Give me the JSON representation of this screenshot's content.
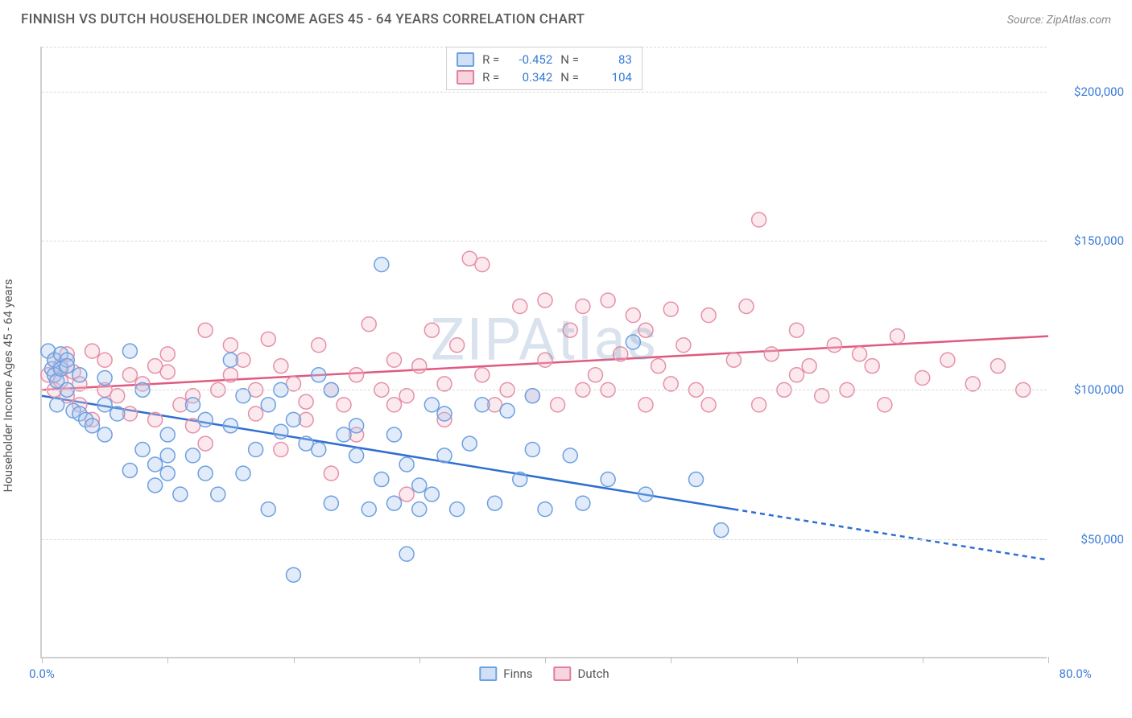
{
  "header": {
    "title": "FINNISH VS DUTCH HOUSEHOLDER INCOME AGES 45 - 64 YEARS CORRELATION CHART",
    "source_prefix": "Source: ",
    "source": "ZipAtlas.com"
  },
  "watermark": "ZIPAtlas",
  "chart": {
    "type": "scatter",
    "ylabel": "Householder Income Ages 45 - 64 years",
    "xlim": [
      0,
      80
    ],
    "ylim": [
      10000,
      215000
    ],
    "x_ticks_pct": [
      0,
      10,
      20,
      30,
      40,
      50,
      60,
      70,
      80
    ],
    "x_tick_labels_shown": {
      "0": "0.0%",
      "80": "80.0%"
    },
    "y_gridlines": [
      50000,
      100000,
      150000,
      200000
    ],
    "y_tick_labels": {
      "50000": "$50,000",
      "100000": "$100,000",
      "150000": "$150,000",
      "200000": "$200,000"
    },
    "background_color": "#ffffff",
    "grid_color": "#d9d9d9",
    "axis_color": "#d0d0d0",
    "tick_label_color": "#3a7bd5",
    "marker_radius": 9,
    "marker_stroke_width": 1.5,
    "marker_fill_opacity": 0.35,
    "trendline_width": 2.5,
    "trendline_dash": "6,5"
  },
  "stats_box": {
    "rows": [
      {
        "swatch_fill": "#cfe0f7",
        "swatch_stroke": "#6ea0e0",
        "r_label": "R =",
        "r": "-0.452",
        "n_label": "N =",
        "n": "83"
      },
      {
        "swatch_fill": "#f7d4de",
        "swatch_stroke": "#e07f9b",
        "r_label": "R =",
        "r": "0.342",
        "n_label": "N =",
        "n": "104"
      }
    ]
  },
  "legend": {
    "items": [
      {
        "label": "Finns",
        "fill": "#cfe0f7",
        "stroke": "#6ea0e0"
      },
      {
        "label": "Dutch",
        "fill": "#f7d4de",
        "stroke": "#e07f9b"
      }
    ]
  },
  "series": {
    "finns": {
      "color_fill": "#a8c6ef",
      "color_stroke": "#6ea0e0",
      "trend_color": "#2f6fd0",
      "trend_start": {
        "x": 0,
        "y": 98000
      },
      "trend_solid_end": {
        "x": 55,
        "y": 60000
      },
      "trend_dash_end": {
        "x": 80,
        "y": 43000
      },
      "points": [
        [
          0.5,
          113000
        ],
        [
          0.8,
          107000
        ],
        [
          1,
          110000
        ],
        [
          1,
          105000
        ],
        [
          1.2,
          95000
        ],
        [
          1.2,
          103000
        ],
        [
          1.5,
          107000
        ],
        [
          1.5,
          112000
        ],
        [
          2,
          110000
        ],
        [
          2,
          108000
        ],
        [
          2,
          100000
        ],
        [
          2.5,
          93000
        ],
        [
          3,
          92000
        ],
        [
          3,
          105000
        ],
        [
          3.5,
          90000
        ],
        [
          4,
          88000
        ],
        [
          5,
          104000
        ],
        [
          5,
          95000
        ],
        [
          5,
          85000
        ],
        [
          6,
          92000
        ],
        [
          7,
          113000
        ],
        [
          7,
          73000
        ],
        [
          8,
          80000
        ],
        [
          8,
          100000
        ],
        [
          9,
          75000
        ],
        [
          9,
          68000
        ],
        [
          10,
          85000
        ],
        [
          10,
          78000
        ],
        [
          10,
          72000
        ],
        [
          11,
          65000
        ],
        [
          12,
          78000
        ],
        [
          12,
          95000
        ],
        [
          13,
          90000
        ],
        [
          13,
          72000
        ],
        [
          14,
          65000
        ],
        [
          15,
          110000
        ],
        [
          15,
          88000
        ],
        [
          16,
          98000
        ],
        [
          16,
          72000
        ],
        [
          17,
          80000
        ],
        [
          18,
          60000
        ],
        [
          18,
          95000
        ],
        [
          19,
          86000
        ],
        [
          19,
          100000
        ],
        [
          20,
          90000
        ],
        [
          20,
          38000
        ],
        [
          21,
          82000
        ],
        [
          22,
          80000
        ],
        [
          22,
          105000
        ],
        [
          23,
          100000
        ],
        [
          23,
          62000
        ],
        [
          24,
          85000
        ],
        [
          25,
          78000
        ],
        [
          25,
          88000
        ],
        [
          26,
          60000
        ],
        [
          27,
          142000
        ],
        [
          27,
          70000
        ],
        [
          28,
          85000
        ],
        [
          28,
          62000
        ],
        [
          29,
          45000
        ],
        [
          29,
          75000
        ],
        [
          30,
          68000
        ],
        [
          30,
          60000
        ],
        [
          31,
          95000
        ],
        [
          31,
          65000
        ],
        [
          32,
          92000
        ],
        [
          32,
          78000
        ],
        [
          33,
          60000
        ],
        [
          34,
          82000
        ],
        [
          35,
          95000
        ],
        [
          36,
          62000
        ],
        [
          37,
          93000
        ],
        [
          38,
          70000
        ],
        [
          39,
          80000
        ],
        [
          39,
          98000
        ],
        [
          40,
          60000
        ],
        [
          42,
          78000
        ],
        [
          43,
          62000
        ],
        [
          45,
          70000
        ],
        [
          47,
          116000
        ],
        [
          48,
          65000
        ],
        [
          52,
          70000
        ],
        [
          54,
          53000
        ]
      ]
    },
    "dutch": {
      "color_fill": "#f3bfcd",
      "color_stroke": "#e690a8",
      "trend_color": "#e05a80",
      "trend_start": {
        "x": 0,
        "y": 100000
      },
      "trend_solid_end": {
        "x": 80,
        "y": 118000
      },
      "trend_dash_end": null,
      "points": [
        [
          0.5,
          105000
        ],
        [
          1,
          110000
        ],
        [
          1,
          100000
        ],
        [
          1.5,
          108000
        ],
        [
          1.5,
          103000
        ],
        [
          2,
          112000
        ],
        [
          2,
          98000
        ],
        [
          2.5,
          106000
        ],
        [
          3,
          102000
        ],
        [
          3,
          95000
        ],
        [
          4,
          113000
        ],
        [
          4,
          90000
        ],
        [
          5,
          110000
        ],
        [
          5,
          100000
        ],
        [
          6,
          98000
        ],
        [
          7,
          105000
        ],
        [
          7,
          92000
        ],
        [
          8,
          102000
        ],
        [
          9,
          108000
        ],
        [
          9,
          90000
        ],
        [
          10,
          106000
        ],
        [
          10,
          112000
        ],
        [
          11,
          95000
        ],
        [
          12,
          98000
        ],
        [
          12,
          88000
        ],
        [
          13,
          82000
        ],
        [
          13,
          120000
        ],
        [
          14,
          100000
        ],
        [
          15,
          105000
        ],
        [
          15,
          115000
        ],
        [
          16,
          110000
        ],
        [
          17,
          92000
        ],
        [
          17,
          100000
        ],
        [
          18,
          117000
        ],
        [
          19,
          108000
        ],
        [
          19,
          80000
        ],
        [
          20,
          102000
        ],
        [
          21,
          96000
        ],
        [
          21,
          90000
        ],
        [
          22,
          115000
        ],
        [
          23,
          100000
        ],
        [
          23,
          72000
        ],
        [
          24,
          95000
        ],
        [
          25,
          105000
        ],
        [
          25,
          85000
        ],
        [
          26,
          122000
        ],
        [
          27,
          100000
        ],
        [
          28,
          95000
        ],
        [
          28,
          110000
        ],
        [
          29,
          98000
        ],
        [
          29,
          65000
        ],
        [
          30,
          108000
        ],
        [
          31,
          120000
        ],
        [
          32,
          102000
        ],
        [
          32,
          90000
        ],
        [
          33,
          115000
        ],
        [
          34,
          144000
        ],
        [
          35,
          105000
        ],
        [
          35,
          142000
        ],
        [
          36,
          95000
        ],
        [
          37,
          100000
        ],
        [
          38,
          128000
        ],
        [
          39,
          98000
        ],
        [
          40,
          110000
        ],
        [
          40,
          130000
        ],
        [
          41,
          95000
        ],
        [
          42,
          120000
        ],
        [
          43,
          100000
        ],
        [
          43,
          128000
        ],
        [
          44,
          105000
        ],
        [
          45,
          130000
        ],
        [
          45,
          100000
        ],
        [
          46,
          112000
        ],
        [
          47,
          125000
        ],
        [
          48,
          95000
        ],
        [
          48,
          120000
        ],
        [
          49,
          108000
        ],
        [
          50,
          102000
        ],
        [
          50,
          127000
        ],
        [
          51,
          115000
        ],
        [
          52,
          100000
        ],
        [
          53,
          125000
        ],
        [
          53,
          95000
        ],
        [
          55,
          110000
        ],
        [
          56,
          128000
        ],
        [
          57,
          95000
        ],
        [
          57,
          157000
        ],
        [
          58,
          112000
        ],
        [
          59,
          100000
        ],
        [
          60,
          105000
        ],
        [
          60,
          120000
        ],
        [
          61,
          108000
        ],
        [
          62,
          98000
        ],
        [
          63,
          115000
        ],
        [
          64,
          100000
        ],
        [
          65,
          112000
        ],
        [
          66,
          108000
        ],
        [
          67,
          95000
        ],
        [
          68,
          118000
        ],
        [
          70,
          104000
        ],
        [
          72,
          110000
        ],
        [
          74,
          102000
        ],
        [
          76,
          108000
        ],
        [
          78,
          100000
        ]
      ]
    }
  }
}
